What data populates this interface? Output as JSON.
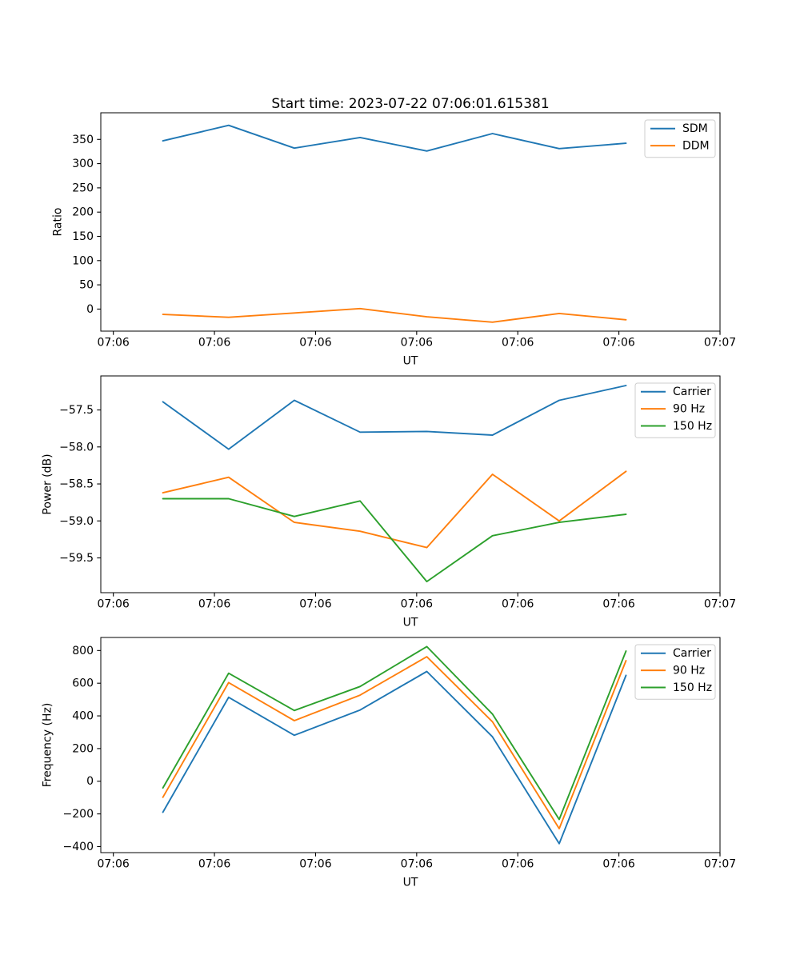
{
  "title": "Start time: 2023-07-22 07:06:01.615381",
  "chart_data": [
    {
      "id": "ratio",
      "type": "line",
      "title": "",
      "xlabel": "UT",
      "ylabel": "Ratio",
      "grid": false,
      "legend_position": "upper right",
      "x_seconds": [
        4.9,
        11.4,
        17.9,
        24.4,
        31.0,
        37.5,
        44.1,
        50.7
      ],
      "xlim": [
        -1.24,
        60.0
      ],
      "xtick_seconds": [
        0,
        10,
        20,
        30,
        40,
        50,
        60
      ],
      "xtick_labels": [
        "07:06",
        "07:06",
        "07:06",
        "07:06",
        "07:06",
        "07:06",
        "07:07"
      ],
      "ylim": [
        -45.5,
        404.9
      ],
      "ytick_values": [
        0,
        50,
        100,
        150,
        200,
        250,
        300,
        350
      ],
      "ytick_labels": [
        "0",
        "50",
        "100",
        "150",
        "200",
        "250",
        "300",
        "350"
      ],
      "series": [
        {
          "name": "SDM",
          "color": "#1f77b4",
          "values": [
            347,
            379,
            332,
            354,
            326,
            362,
            331,
            342
          ]
        },
        {
          "name": "DDM",
          "color": "#ff7f0e",
          "values": [
            -11,
            -17,
            -8,
            1,
            -16,
            -27,
            -9,
            -22
          ]
        }
      ]
    },
    {
      "id": "power",
      "type": "line",
      "title": "",
      "xlabel": "UT",
      "ylabel": "Power (dB)",
      "grid": false,
      "legend_position": "upper right",
      "x_seconds": [
        4.9,
        11.4,
        17.9,
        24.4,
        31.0,
        37.5,
        44.1,
        50.7
      ],
      "xlim": [
        -1.24,
        60.0
      ],
      "xtick_seconds": [
        0,
        10,
        20,
        30,
        40,
        50,
        60
      ],
      "xtick_labels": [
        "07:06",
        "07:06",
        "07:06",
        "07:06",
        "07:06",
        "07:06",
        "07:07"
      ],
      "ylim": [
        -59.97,
        -57.04
      ],
      "ytick_values": [
        -57.5,
        -58.0,
        -58.5,
        -59.0,
        -59.5
      ],
      "ytick_labels": [
        "−57.5",
        "−58.0",
        "−58.5",
        "−59.0",
        "−59.5"
      ],
      "series": [
        {
          "name": "Carrier",
          "color": "#1f77b4",
          "values": [
            -57.39,
            -58.03,
            -57.37,
            -57.8,
            -57.79,
            -57.84,
            -57.37,
            -57.17
          ]
        },
        {
          "name": "90 Hz",
          "color": "#ff7f0e",
          "values": [
            -58.62,
            -58.41,
            -59.02,
            -59.14,
            -59.36,
            -58.37,
            -59.0,
            -58.33
          ]
        },
        {
          "name": "150 Hz",
          "color": "#2ca02c",
          "values": [
            -58.7,
            -58.7,
            -58.94,
            -58.73,
            -59.82,
            -59.2,
            -59.02,
            -58.91
          ]
        }
      ]
    },
    {
      "id": "frequency",
      "type": "line",
      "title": "",
      "xlabel": "UT",
      "ylabel": "Frequency (Hz)",
      "grid": false,
      "legend_position": "upper right",
      "x_seconds": [
        4.9,
        11.4,
        17.9,
        24.4,
        31.0,
        37.5,
        44.1,
        50.7
      ],
      "xlim": [
        -1.24,
        60.0
      ],
      "xtick_seconds": [
        0,
        10,
        20,
        30,
        40,
        50,
        60
      ],
      "xtick_labels": [
        "07:06",
        "07:06",
        "07:06",
        "07:06",
        "07:06",
        "07:06",
        "07:07"
      ],
      "ylim": [
        -437.0,
        880.0
      ],
      "ytick_values": [
        800,
        600,
        400,
        200,
        0,
        -200,
        -400
      ],
      "ytick_labels": [
        "800",
        "600",
        "400",
        "200",
        "0",
        "−200",
        "−400"
      ],
      "series": [
        {
          "name": "Carrier",
          "color": "#1f77b4",
          "values": [
            -190,
            514,
            281,
            436,
            672,
            272,
            -382,
            648
          ]
        },
        {
          "name": "90 Hz",
          "color": "#ff7f0e",
          "values": [
            -98,
            604,
            371,
            527,
            762,
            364,
            -290,
            738
          ]
        },
        {
          "name": "150 Hz",
          "color": "#2ca02c",
          "values": [
            -41,
            661,
            433,
            580,
            824,
            411,
            -234,
            797
          ]
        }
      ]
    }
  ]
}
